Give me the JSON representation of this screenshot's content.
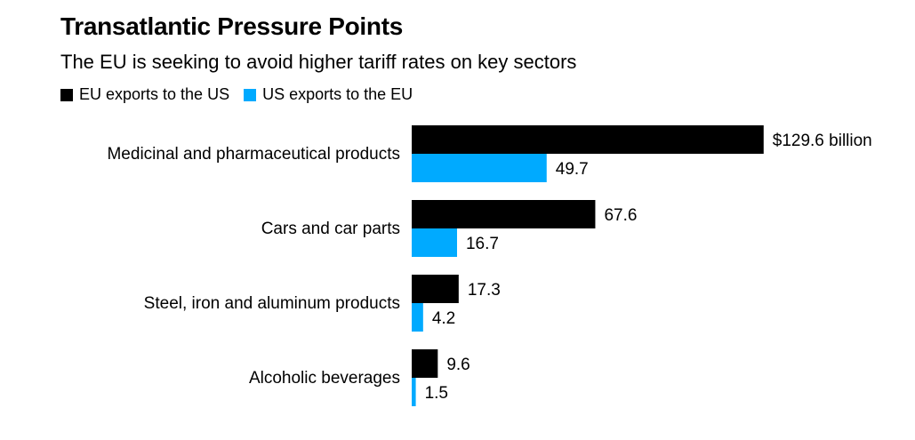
{
  "title": "Transatlantic Pressure Points",
  "subtitle": "The EU is seeking to avoid higher tariff rates on key sectors",
  "colors": {
    "eu": "#000000",
    "us": "#00aaff"
  },
  "chart_data": {
    "type": "bar",
    "orientation": "horizontal",
    "title": "Transatlantic Pressure Points",
    "subtitle": "The EU is seeking to avoid higher tariff rates on key sectors",
    "xlim": [
      0,
      130
    ],
    "grid": false,
    "legend_position": "top-left",
    "categories": [
      "Medicinal and pharmaceutical products",
      "Cars and car parts",
      "Steel, iron and aluminum products",
      "Alcoholic beverages"
    ],
    "series": [
      {
        "name": "EU exports to the US",
        "color": "#000000",
        "values": [
          129.6,
          67.6,
          17.3,
          9.6
        ],
        "labels": [
          "$129.6 billion",
          "67.6",
          "17.3",
          "9.6"
        ]
      },
      {
        "name": "US exports to the EU",
        "color": "#00aaff",
        "values": [
          49.7,
          16.7,
          4.2,
          1.5
        ],
        "labels": [
          "49.7",
          "16.7",
          "4.2",
          "1.5"
        ]
      }
    ]
  }
}
